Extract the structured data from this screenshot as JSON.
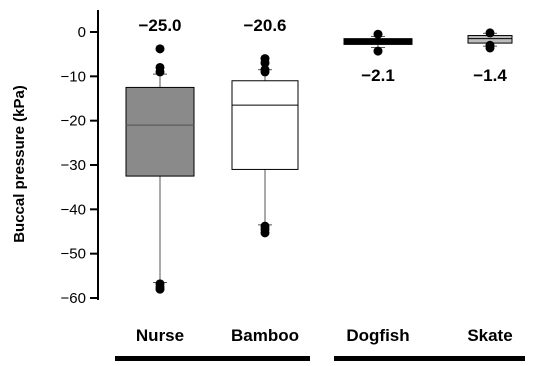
{
  "chart_data": {
    "type": "box",
    "ylabel": "Buccal pressure (kPa)",
    "ylim": [
      -60,
      3
    ],
    "yticks": [
      0,
      -10,
      -20,
      -30,
      -40,
      -50,
      -60
    ],
    "categories": [
      "Nurse",
      "Bamboo",
      "Dogfish",
      "Skate"
    ],
    "groups": [
      {
        "members": [
          "Nurse",
          "Bamboo"
        ]
      },
      {
        "members": [
          "Dogfish",
          "Skate"
        ]
      }
    ],
    "boxes": [
      {
        "name": "Nurse",
        "whisker_low": -56.5,
        "q1": -32.5,
        "median": -21.0,
        "q3": -12.5,
        "whisker_high": -9.5,
        "outliers": [
          -3.8,
          -8.0,
          -9.0,
          -56.8,
          -57.5,
          -58.0
        ],
        "fill": "#8a8a8a",
        "median_color": "#505050",
        "label": "−25.0",
        "label_position": "above"
      },
      {
        "name": "Bamboo",
        "whisker_low": -43.5,
        "q1": -31.0,
        "median": -16.5,
        "q3": -11.0,
        "whisker_high": -8.5,
        "outliers": [
          -6.0,
          -7.0,
          -8.5,
          -9.0,
          -43.8,
          -44.5,
          -45.3
        ],
        "fill": "#ffffff",
        "median_color": "#000000",
        "label": "−20.6",
        "label_position": "above"
      },
      {
        "name": "Dogfish",
        "whisker_low": -3.5,
        "q1": -2.8,
        "median": -2.1,
        "q3": -1.5,
        "whisker_high": -1.0,
        "outliers": [
          -0.5,
          -4.3
        ],
        "fill": "#000000",
        "median_color": "#000000",
        "label": "−2.1",
        "label_position": "below"
      },
      {
        "name": "Skate",
        "whisker_low": -3.2,
        "q1": -2.5,
        "median": -1.5,
        "q3": -0.8,
        "whisker_high": -0.3,
        "outliers": [
          -0.2,
          -3.0,
          -3.6
        ],
        "fill": "#bdbdbd",
        "median_color": "#000000",
        "label": "−1.4",
        "label_position": "below"
      }
    ],
    "grid": false,
    "legend": "none"
  }
}
